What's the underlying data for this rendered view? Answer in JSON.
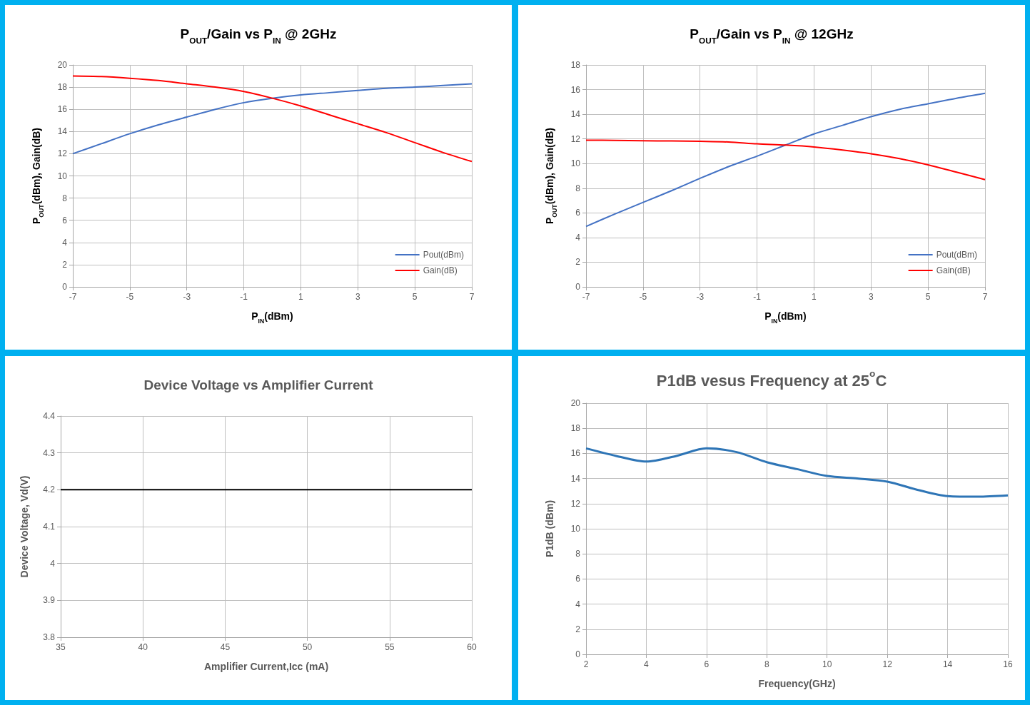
{
  "chart_data": [
    {
      "type": "line",
      "title": "P$_{OUT}$/Gain vs P$_{IN}$ @ 2GHz",
      "xlabel": "P$_{IN}$(dBm)",
      "ylabel": "P$_{OUT}$(dBm), Gain(dB)",
      "x": [
        -7,
        -6,
        -5,
        -4,
        -3,
        -2,
        -1,
        0,
        1,
        2,
        3,
        4,
        5,
        6,
        7
      ],
      "series": [
        {
          "name": "Pout(dBm)",
          "color": "#4472c4",
          "values": [
            12.0,
            12.9,
            13.8,
            14.6,
            15.3,
            16.0,
            16.6,
            17.0,
            17.3,
            17.5,
            17.7,
            17.9,
            18.0,
            18.15,
            18.3
          ]
        },
        {
          "name": "Gain(dB)",
          "color": "#ff0000",
          "values": [
            19.0,
            18.95,
            18.8,
            18.6,
            18.3,
            18.0,
            17.6,
            17.0,
            16.3,
            15.5,
            14.7,
            13.9,
            13.0,
            12.1,
            11.3
          ]
        }
      ],
      "xlim": [
        -7,
        7
      ],
      "xticks": [
        -7,
        -5,
        -3,
        -1,
        1,
        3,
        5,
        7
      ],
      "ylim": [
        0,
        20
      ],
      "yticks": [
        0,
        2,
        4,
        6,
        8,
        10,
        12,
        14,
        16,
        18,
        20
      ],
      "grid": true,
      "legend": "bottom right"
    },
    {
      "type": "line",
      "title": "P$_{OUT}$/Gain vs P$_{IN}$ @ 12GHz",
      "xlabel": "P$_{IN}$(dBm)",
      "ylabel": "P$_{OUT}$(dBm), Gain(dB)",
      "x": [
        -7,
        -6,
        -5,
        -4,
        -3,
        -2,
        -1,
        0,
        1,
        2,
        3,
        4,
        5,
        6,
        7
      ],
      "series": [
        {
          "name": "Pout(dBm)",
          "color": "#4472c4",
          "values": [
            4.9,
            5.9,
            6.85,
            7.8,
            8.8,
            9.75,
            10.6,
            11.5,
            12.4,
            13.1,
            13.8,
            14.4,
            14.85,
            15.3,
            15.7
          ]
        },
        {
          "name": "Gain(dB)",
          "color": "#ff0000",
          "values": [
            11.9,
            11.88,
            11.85,
            11.83,
            11.8,
            11.75,
            11.6,
            11.5,
            11.35,
            11.1,
            10.8,
            10.4,
            9.9,
            9.3,
            8.7
          ]
        }
      ],
      "xlim": [
        -7,
        7
      ],
      "xticks": [
        -7,
        -5,
        -3,
        -1,
        1,
        3,
        5,
        7
      ],
      "ylim": [
        0,
        18
      ],
      "yticks": [
        0,
        2,
        4,
        6,
        8,
        10,
        12,
        14,
        16,
        18
      ],
      "grid": true,
      "legend": "bottom right"
    },
    {
      "type": "line",
      "title": "Device Voltage vs Amplifier Current",
      "xlabel": "Amplifier Current,Icc (mA)",
      "ylabel": "Device Voltage, Vd(V)",
      "x": [
        35,
        60
      ],
      "series": [
        {
          "color": "#000000",
          "values": [
            4.2,
            4.2
          ]
        }
      ],
      "xlim": [
        35,
        60
      ],
      "xticks": [
        35,
        40,
        45,
        50,
        55,
        60
      ],
      "ylim": [
        3.8,
        4.4
      ],
      "yticks": [
        3.8,
        3.9,
        4,
        4.1,
        4.2,
        4.3,
        4.4
      ],
      "grid": true
    },
    {
      "type": "line",
      "title": "P1dB vesus Frequency at 25$^{o}$C",
      "xlabel": "Frequency(GHz)",
      "ylabel": "P1dB (dBm)",
      "x": [
        2,
        3,
        4,
        5,
        6,
        7,
        8,
        9,
        10,
        11,
        12,
        13,
        14,
        15,
        16
      ],
      "series": [
        {
          "color": "#2e75b6",
          "values": [
            16.4,
            15.8,
            15.35,
            15.8,
            16.4,
            16.1,
            15.3,
            14.75,
            14.2,
            14.0,
            13.75,
            13.1,
            12.6,
            12.55,
            12.65
          ]
        }
      ],
      "xlim": [
        2,
        16
      ],
      "xticks": [
        2,
        4,
        6,
        8,
        10,
        12,
        14,
        16
      ],
      "ylim": [
        0,
        20
      ],
      "yticks": [
        0,
        2,
        4,
        6,
        8,
        10,
        12,
        14,
        16,
        18,
        20
      ],
      "grid": true
    }
  ]
}
